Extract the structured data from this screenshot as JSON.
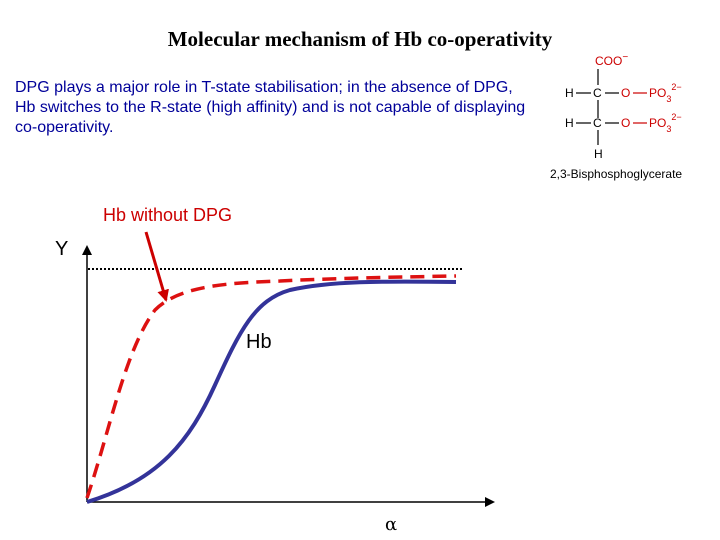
{
  "title": "Molecular mechanism of Hb co-operativity",
  "description": "DPG plays a major role in T-state stabilisation; in the absence of DPG, Hb switches to the R-state (high affinity)  and is not capable of displaying co-operativity.",
  "molecule": {
    "caption": "2,3-Bisphosphoglycerate",
    "carboxyl": "COO",
    "carboxyl_charge": "−",
    "atom_h": "H",
    "atom_c": "C",
    "atom_o": "O",
    "phosphate": "PO",
    "phosphate_sub": "3",
    "phosphate_charge": "2−"
  },
  "graph": {
    "annotation": "Hb without DPG",
    "y_label": "Y",
    "x_label": "α",
    "curve_label": "Hb"
  },
  "colors": {
    "text_blue": "#000099",
    "curve_hb": "#333399",
    "curve_no_dpg": "#dd1111",
    "molecule_red": "#cc0000"
  }
}
